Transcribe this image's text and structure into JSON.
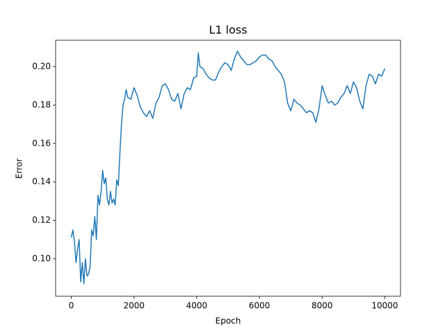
{
  "chart_data": {
    "type": "line",
    "title": "L1 loss",
    "xlabel": "Epoch",
    "ylabel": "Error",
    "x": [
      0,
      50,
      100,
      150,
      200,
      250,
      300,
      350,
      400,
      450,
      500,
      550,
      600,
      650,
      700,
      750,
      800,
      850,
      900,
      950,
      1000,
      1050,
      1100,
      1150,
      1200,
      1250,
      1300,
      1350,
      1400,
      1450,
      1500,
      1550,
      1600,
      1650,
      1700,
      1750,
      1800,
      1900,
      2000,
      2100,
      2200,
      2300,
      2400,
      2500,
      2600,
      2700,
      2800,
      2900,
      3000,
      3100,
      3200,
      3300,
      3400,
      3500,
      3600,
      3700,
      3800,
      3900,
      4000,
      4050,
      4100,
      4200,
      4300,
      4400,
      4500,
      4600,
      4700,
      4800,
      4900,
      5000,
      5100,
      5200,
      5300,
      5400,
      5500,
      5600,
      5700,
      5800,
      5900,
      6000,
      6100,
      6200,
      6300,
      6400,
      6500,
      6600,
      6700,
      6800,
      6900,
      7000,
      7100,
      7200,
      7300,
      7400,
      7500,
      7600,
      7700,
      7800,
      7900,
      8000,
      8100,
      8200,
      8300,
      8400,
      8500,
      8600,
      8700,
      8800,
      8900,
      9000,
      9100,
      9200,
      9300,
      9400,
      9500,
      9600,
      9700,
      9800,
      9900,
      10000
    ],
    "series": [
      {
        "name": "L1 loss",
        "color": "#1f77b4",
        "values": [
          0.111,
          0.115,
          0.109,
          0.098,
          0.105,
          0.11,
          0.088,
          0.098,
          0.087,
          0.1,
          0.091,
          0.092,
          0.096,
          0.115,
          0.112,
          0.122,
          0.11,
          0.133,
          0.128,
          0.135,
          0.146,
          0.139,
          0.142,
          0.131,
          0.128,
          0.135,
          0.129,
          0.131,
          0.128,
          0.141,
          0.138,
          0.155,
          0.17,
          0.18,
          0.183,
          0.188,
          0.184,
          0.183,
          0.189,
          0.185,
          0.179,
          0.176,
          0.174,
          0.177,
          0.173,
          0.181,
          0.184,
          0.19,
          0.191,
          0.188,
          0.183,
          0.182,
          0.186,
          0.178,
          0.186,
          0.189,
          0.188,
          0.194,
          0.195,
          0.207,
          0.2,
          0.199,
          0.196,
          0.194,
          0.193,
          0.193,
          0.197,
          0.2,
          0.202,
          0.201,
          0.198,
          0.204,
          0.208,
          0.205,
          0.203,
          0.201,
          0.201,
          0.202,
          0.203,
          0.205,
          0.206,
          0.206,
          0.204,
          0.203,
          0.2,
          0.198,
          0.196,
          0.192,
          0.181,
          0.177,
          0.183,
          0.181,
          0.18,
          0.178,
          0.176,
          0.177,
          0.176,
          0.171,
          0.178,
          0.19,
          0.185,
          0.181,
          0.182,
          0.18,
          0.181,
          0.184,
          0.186,
          0.19,
          0.186,
          0.192,
          0.189,
          0.182,
          0.178,
          0.19,
          0.196,
          0.195,
          0.191,
          0.196,
          0.195,
          0.199
        ]
      }
    ],
    "xlim": [
      -500,
      10500
    ],
    "xticks": [
      0,
      2000,
      4000,
      6000,
      8000,
      10000
    ],
    "ylim": [
      0.0805,
      0.2137
    ],
    "yticks": [
      {
        "value": 0.1,
        "label": "0.10"
      },
      {
        "value": 0.12,
        "label": "0.12"
      },
      {
        "value": 0.14,
        "label": "0.14"
      },
      {
        "value": 0.16,
        "label": "0.16"
      },
      {
        "value": 0.18,
        "label": "0.18"
      },
      {
        "value": 0.2,
        "label": "0.20"
      }
    ]
  }
}
